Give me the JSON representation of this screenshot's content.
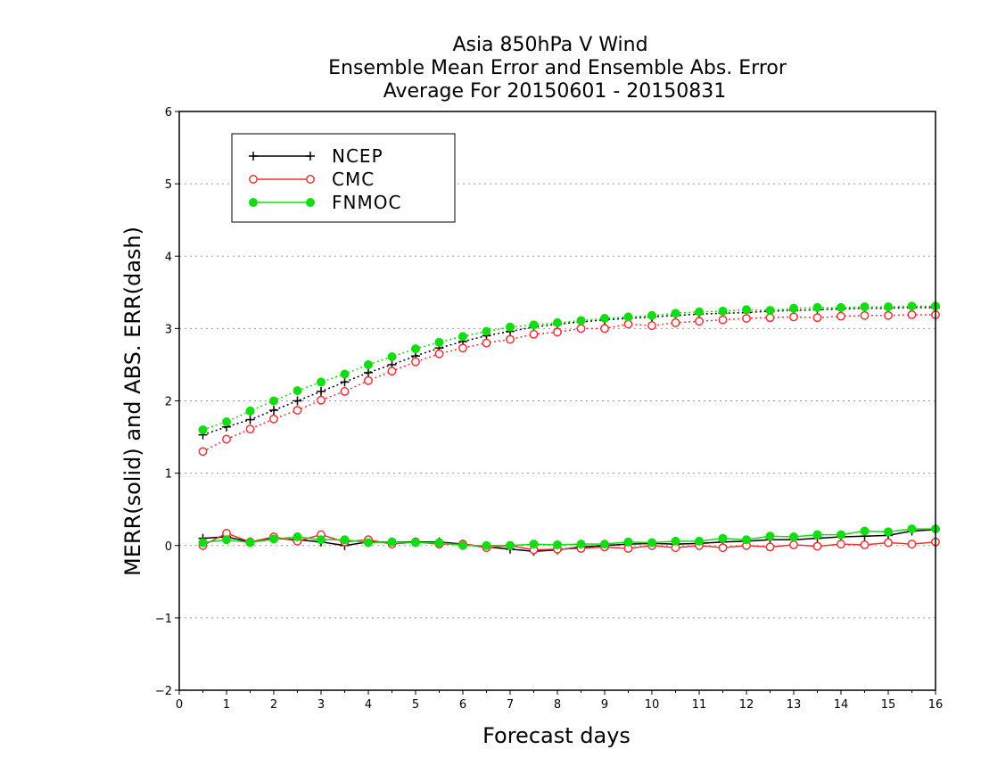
{
  "chart_data": {
    "type": "line",
    "title_lines": [
      "Asia 850hPa V Wind",
      "Ensemble Mean Error and Ensemble Abs. Error",
      "Average For 20150601 - 20150831"
    ],
    "xlabel": "Forecast days",
    "ylabel": "MERR(solid) and ABS. ERR(dash)",
    "xlim": [
      0,
      16
    ],
    "ylim": [
      -2,
      6
    ],
    "x_ticks": [
      "0",
      "1",
      "2",
      "3",
      "4",
      "5",
      "6",
      "7",
      "8",
      "9",
      "10",
      "11",
      "12",
      "13",
      "14",
      "15",
      "16"
    ],
    "y_ticks": [
      "-2",
      "-1",
      "0",
      "1",
      "2",
      "3",
      "4",
      "5",
      "6"
    ],
    "grid": "horizontal dotted",
    "legend_position": "top-left",
    "x": [
      0.5,
      1,
      1.5,
      2,
      2.5,
      3,
      3.5,
      4,
      4.5,
      5,
      5.5,
      6,
      6.5,
      7,
      7.5,
      8,
      8.5,
      9,
      9.5,
      10,
      10.5,
      11,
      11.5,
      12,
      12.5,
      13,
      13.5,
      14,
      14.5,
      15,
      15.5,
      16
    ],
    "series": [
      {
        "name": "NCEP",
        "color": "#000000",
        "marker": "plus",
        "merr": [
          0.1,
          0.12,
          0.05,
          0.1,
          0.08,
          0.05,
          0.0,
          0.05,
          0.05,
          0.05,
          0.05,
          0.02,
          -0.02,
          -0.05,
          -0.08,
          -0.06,
          -0.02,
          0.0,
          0.02,
          0.03,
          0.02,
          0.03,
          0.05,
          0.06,
          0.08,
          0.08,
          0.1,
          0.12,
          0.13,
          0.14,
          0.2,
          0.22
        ],
        "abs_err": [
          1.53,
          1.64,
          1.74,
          1.87,
          2.0,
          2.13,
          2.26,
          2.39,
          2.5,
          2.62,
          2.73,
          2.82,
          2.9,
          2.96,
          3.02,
          3.06,
          3.09,
          3.12,
          3.14,
          3.16,
          3.18,
          3.2,
          3.21,
          3.22,
          3.24,
          3.25,
          3.26,
          3.27,
          3.28,
          3.28,
          3.29,
          3.29
        ]
      },
      {
        "name": "CMC",
        "color": "#ee3333",
        "marker": "open-circle",
        "merr": [
          0.0,
          0.17,
          0.05,
          0.12,
          0.06,
          0.15,
          0.05,
          0.08,
          0.02,
          0.05,
          0.02,
          0.02,
          -0.03,
          0.0,
          -0.06,
          -0.05,
          -0.04,
          -0.02,
          -0.04,
          0.0,
          -0.03,
          0.0,
          -0.03,
          0.0,
          -0.02,
          0.01,
          -0.01,
          0.02,
          0.01,
          0.04,
          0.02,
          0.05
        ],
        "abs_err": [
          1.3,
          1.47,
          1.61,
          1.75,
          1.87,
          2.01,
          2.13,
          2.28,
          2.41,
          2.54,
          2.65,
          2.73,
          2.8,
          2.85,
          2.92,
          2.95,
          3.0,
          3.0,
          3.06,
          3.04,
          3.08,
          3.1,
          3.12,
          3.14,
          3.15,
          3.16,
          3.15,
          3.17,
          3.18,
          3.18,
          3.19,
          3.19
        ]
      },
      {
        "name": "FNMOC",
        "color": "#11dd11",
        "marker": "filled-circle",
        "merr": [
          0.04,
          0.08,
          0.04,
          0.09,
          0.12,
          0.08,
          0.08,
          0.04,
          0.05,
          0.04,
          0.04,
          0.0,
          0.0,
          0.0,
          0.02,
          0.01,
          0.02,
          0.02,
          0.05,
          0.04,
          0.06,
          0.06,
          0.1,
          0.08,
          0.13,
          0.12,
          0.15,
          0.15,
          0.2,
          0.19,
          0.23,
          0.23
        ],
        "abs_err": [
          1.6,
          1.71,
          1.86,
          2.0,
          2.14,
          2.26,
          2.37,
          2.5,
          2.61,
          2.72,
          2.81,
          2.89,
          2.96,
          3.02,
          3.05,
          3.08,
          3.11,
          3.14,
          3.16,
          3.18,
          3.21,
          3.23,
          3.24,
          3.26,
          3.25,
          3.28,
          3.29,
          3.29,
          3.3,
          3.3,
          3.31,
          3.31
        ]
      }
    ]
  }
}
